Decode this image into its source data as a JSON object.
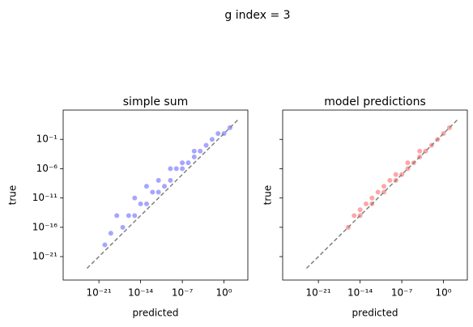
{
  "title": "g index = 3",
  "chart_data": [
    {
      "type": "scatter",
      "title": "simple sum",
      "x_label": "predicted",
      "y_label": "true",
      "log_x": true,
      "log_y": true,
      "color": "#0000ff",
      "show_ytick_labels": true,
      "xlim": [
        1e-27,
        10000.0
      ],
      "ylim": [
        1e-25,
        10000.0
      ],
      "xticks": [
        {
          "value": 1e-21,
          "label": "10⁻²¹"
        },
        {
          "value": 1e-14,
          "label": "10⁻¹⁴"
        },
        {
          "value": 1e-07,
          "label": "10⁻⁷"
        },
        {
          "value": 1,
          "label": "10⁰"
        }
      ],
      "yticks": [
        {
          "value": 1e-21,
          "label": "10⁻²¹"
        },
        {
          "value": 1e-16,
          "label": "10⁻¹⁶"
        },
        {
          "value": 1e-11,
          "label": "10⁻¹¹"
        },
        {
          "value": 1e-06,
          "label": "10⁻⁶"
        },
        {
          "value": 0.1,
          "label": "10⁻¹"
        }
      ],
      "x": [
        1e-20,
        1e-19,
        1e-18,
        1e-17,
        1e-16,
        1e-15,
        1e-15,
        1e-14,
        1e-13,
        1e-13,
        1e-12,
        1e-11,
        1e-11,
        1e-10,
        1e-09,
        1e-09,
        1e-08,
        1e-07,
        1e-07,
        1e-06,
        1e-05,
        1e-05,
        0.0001,
        0.001,
        0.01,
        0.1,
        1,
        10
      ],
      "y": [
        1e-19,
        1e-17,
        1e-14,
        1e-16,
        1e-14,
        1e-11,
        1e-14,
        1e-12,
        1e-09,
        1e-12,
        1e-10,
        1e-08,
        1e-10,
        1e-09,
        1e-06,
        1e-08,
        1e-06,
        1e-05,
        1e-06,
        1e-05,
        0.001,
        0.0001,
        0.001,
        0.01,
        0.1,
        1,
        1,
        10
      ],
      "diagonal": {
        "x": [
          1e-23,
          200
        ],
        "y": [
          1e-23,
          200
        ],
        "color": "#808080"
      }
    },
    {
      "type": "scatter",
      "title": "model predictions",
      "x_label": "predicted",
      "y_label": "true",
      "log_x": true,
      "log_y": true,
      "color": "#ff0000",
      "show_ytick_labels": false,
      "xlim": [
        1e-27,
        10000.0
      ],
      "ylim": [
        1e-25,
        10000.0
      ],
      "xticks": [
        {
          "value": 1e-21,
          "label": "10⁻²¹"
        },
        {
          "value": 1e-14,
          "label": "10⁻¹⁴"
        },
        {
          "value": 1e-07,
          "label": "10⁻⁷"
        },
        {
          "value": 1,
          "label": "10⁰"
        }
      ],
      "yticks": [
        1e-21,
        1e-16,
        1e-11,
        1e-06,
        0.1
      ],
      "x": [
        1e-16,
        1e-15,
        1e-14,
        1e-14,
        1e-13,
        1e-12,
        1e-12,
        1e-11,
        1e-10,
        1e-10,
        1e-09,
        1e-08,
        1e-08,
        1e-07,
        1e-06,
        1e-06,
        1e-05,
        0.0001,
        0.0001,
        0.001,
        0.01,
        0.1,
        1,
        10
      ],
      "y": [
        1e-16,
        1e-14,
        1e-14,
        1e-13,
        1e-12,
        1e-12,
        1e-11,
        1e-10,
        1e-10,
        1e-09,
        1e-08,
        1e-08,
        1e-07,
        1e-07,
        1e-06,
        1e-05,
        1e-05,
        0.0001,
        0.001,
        0.001,
        0.01,
        0.1,
        1,
        10
      ],
      "diagonal": {
        "x": [
          1e-23,
          200
        ],
        "y": [
          1e-23,
          200
        ],
        "color": "#808080"
      }
    }
  ]
}
